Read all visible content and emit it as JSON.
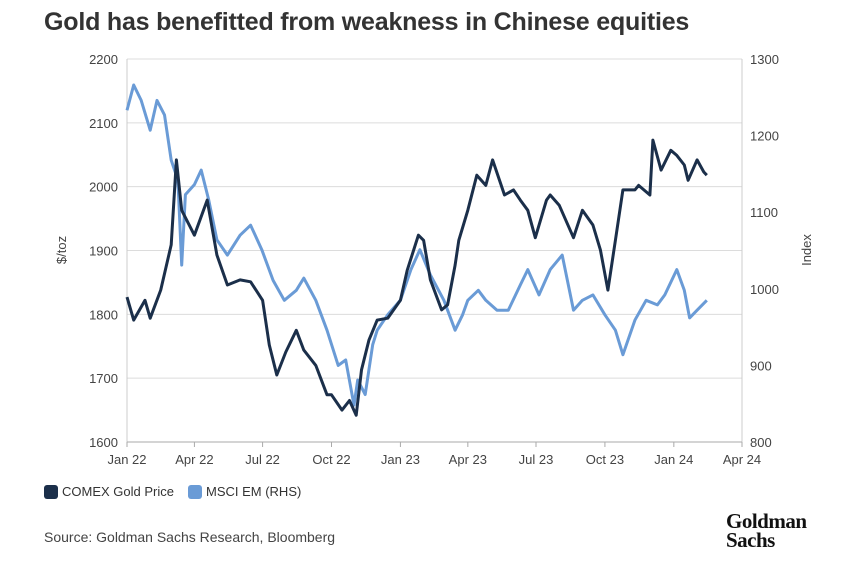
{
  "title": "Gold has benefitted from weakness in Chinese equities",
  "source": "Source: Goldman Sachs Research, Bloomberg",
  "logo": "Goldman Sachs",
  "chart_data": {
    "type": "line",
    "title": "Gold has benefitted from weakness in Chinese equities",
    "ylabel": "$/toz",
    "y2label": "Index",
    "ylim": [
      1600,
      2200
    ],
    "y2lim": [
      800,
      1300
    ],
    "yticks": [
      "1600",
      "1700",
      "1800",
      "1900",
      "2000",
      "2100",
      "2200"
    ],
    "y2ticks": [
      "800",
      "900",
      "1000",
      "1100",
      "1200",
      "1300"
    ],
    "xticks": [
      {
        "label": "Jan 22",
        "date": "2022-01-01"
      },
      {
        "label": "Apr 22",
        "date": "2022-04-01"
      },
      {
        "label": "Jul 22",
        "date": "2022-07-01"
      },
      {
        "label": "Oct 22",
        "date": "2022-10-01"
      },
      {
        "label": "Jan 23",
        "date": "2023-01-01"
      },
      {
        "label": "Apr 23",
        "date": "2023-04-01"
      },
      {
        "label": "Jul 23",
        "date": "2023-07-01"
      },
      {
        "label": "Oct 23",
        "date": "2023-10-01"
      },
      {
        "label": "Jan 24",
        "date": "2024-01-01"
      },
      {
        "label": "Apr 24",
        "date": "2024-04-01"
      }
    ],
    "grid": true,
    "legend": "bottom-left",
    "series": [
      {
        "name": "COMEX Gold Price",
        "axis": "left",
        "color": "#1b2f4a",
        "points": [
          [
            "2022-01-01",
            1827
          ],
          [
            "2022-01-10",
            1791
          ],
          [
            "2022-01-25",
            1822
          ],
          [
            "2022-02-01",
            1794
          ],
          [
            "2022-02-15",
            1838
          ],
          [
            "2022-03-01",
            1909
          ],
          [
            "2022-03-08",
            2042
          ],
          [
            "2022-03-15",
            1963
          ],
          [
            "2022-04-01",
            1924
          ],
          [
            "2022-04-18",
            1979
          ],
          [
            "2022-05-01",
            1893
          ],
          [
            "2022-05-15",
            1846
          ],
          [
            "2022-06-01",
            1854
          ],
          [
            "2022-06-15",
            1851
          ],
          [
            "2022-07-01",
            1822
          ],
          [
            "2022-07-10",
            1752
          ],
          [
            "2022-07-20",
            1705
          ],
          [
            "2022-08-01",
            1741
          ],
          [
            "2022-08-15",
            1775
          ],
          [
            "2022-08-25",
            1744
          ],
          [
            "2022-09-10",
            1720
          ],
          [
            "2022-09-25",
            1674
          ],
          [
            "2022-10-01",
            1674
          ],
          [
            "2022-10-15",
            1650
          ],
          [
            "2022-10-25",
            1665
          ],
          [
            "2022-11-03",
            1642
          ],
          [
            "2022-11-10",
            1713
          ],
          [
            "2022-11-20",
            1760
          ],
          [
            "2022-12-01",
            1791
          ],
          [
            "2022-12-15",
            1794
          ],
          [
            "2023-01-01",
            1822
          ],
          [
            "2023-01-10",
            1869
          ],
          [
            "2023-01-25",
            1924
          ],
          [
            "2023-02-01",
            1916
          ],
          [
            "2023-02-10",
            1854
          ],
          [
            "2023-02-25",
            1807
          ],
          [
            "2023-03-05",
            1815
          ],
          [
            "2023-03-15",
            1877
          ],
          [
            "2023-03-20",
            1916
          ],
          [
            "2023-04-01",
            1963
          ],
          [
            "2023-04-13",
            2018
          ],
          [
            "2023-04-25",
            2002
          ],
          [
            "2023-05-04",
            2042
          ],
          [
            "2023-05-20",
            1987
          ],
          [
            "2023-06-01",
            1995
          ],
          [
            "2023-06-10",
            1979
          ],
          [
            "2023-06-20",
            1963
          ],
          [
            "2023-06-30",
            1920
          ],
          [
            "2023-07-15",
            1979
          ],
          [
            "2023-07-20",
            1987
          ],
          [
            "2023-08-01",
            1971
          ],
          [
            "2023-08-20",
            1920
          ],
          [
            "2023-09-01",
            1963
          ],
          [
            "2023-09-15",
            1940
          ],
          [
            "2023-09-25",
            1901
          ],
          [
            "2023-10-05",
            1838
          ],
          [
            "2023-10-15",
            1916
          ],
          [
            "2023-10-25",
            1995
          ],
          [
            "2023-11-10",
            1995
          ],
          [
            "2023-11-15",
            2002
          ],
          [
            "2023-11-30",
            1987
          ],
          [
            "2023-12-04",
            2073
          ],
          [
            "2023-12-15",
            2026
          ],
          [
            "2023-12-28",
            2057
          ],
          [
            "2024-01-05",
            2049
          ],
          [
            "2024-01-15",
            2034
          ],
          [
            "2024-01-20",
            2010
          ],
          [
            "2024-02-01",
            2042
          ],
          [
            "2024-02-10",
            2023
          ],
          [
            "2024-02-14",
            2018
          ]
        ]
      },
      {
        "name": "MSCI EM (RHS)",
        "axis": "right",
        "color": "#6a9bd6",
        "points": [
          [
            "2022-01-01",
            1233
          ],
          [
            "2022-01-10",
            1266
          ],
          [
            "2022-01-20",
            1246
          ],
          [
            "2022-02-01",
            1207
          ],
          [
            "2022-02-10",
            1246
          ],
          [
            "2022-02-20",
            1227
          ],
          [
            "2022-03-01",
            1168
          ],
          [
            "2022-03-10",
            1142
          ],
          [
            "2022-03-15",
            1031
          ],
          [
            "2022-03-20",
            1123
          ],
          [
            "2022-04-01",
            1136
          ],
          [
            "2022-04-10",
            1155
          ],
          [
            "2022-04-20",
            1116
          ],
          [
            "2022-05-01",
            1064
          ],
          [
            "2022-05-15",
            1044
          ],
          [
            "2022-06-01",
            1070
          ],
          [
            "2022-06-15",
            1083
          ],
          [
            "2022-06-30",
            1051
          ],
          [
            "2022-07-15",
            1011
          ],
          [
            "2022-07-30",
            985
          ],
          [
            "2022-08-15",
            998
          ],
          [
            "2022-08-25",
            1014
          ],
          [
            "2022-09-10",
            985
          ],
          [
            "2022-09-25",
            946
          ],
          [
            "2022-10-10",
            900
          ],
          [
            "2022-10-20",
            907
          ],
          [
            "2022-10-31",
            848
          ],
          [
            "2022-11-05",
            881
          ],
          [
            "2022-11-15",
            862
          ],
          [
            "2022-11-25",
            927
          ],
          [
            "2022-12-01",
            946
          ],
          [
            "2022-12-15",
            966
          ],
          [
            "2023-01-01",
            985
          ],
          [
            "2023-01-15",
            1025
          ],
          [
            "2023-01-27",
            1051
          ],
          [
            "2023-02-10",
            1018
          ],
          [
            "2023-02-28",
            985
          ],
          [
            "2023-03-15",
            946
          ],
          [
            "2023-03-25",
            966
          ],
          [
            "2023-04-01",
            985
          ],
          [
            "2023-04-15",
            998
          ],
          [
            "2023-04-25",
            985
          ],
          [
            "2023-05-10",
            972
          ],
          [
            "2023-05-25",
            972
          ],
          [
            "2023-06-10",
            1005
          ],
          [
            "2023-06-20",
            1025
          ],
          [
            "2023-07-05",
            992
          ],
          [
            "2023-07-20",
            1025
          ],
          [
            "2023-08-05",
            1044
          ],
          [
            "2023-08-20",
            972
          ],
          [
            "2023-09-01",
            985
          ],
          [
            "2023-09-15",
            992
          ],
          [
            "2023-10-01",
            966
          ],
          [
            "2023-10-15",
            946
          ],
          [
            "2023-10-25",
            914
          ],
          [
            "2023-11-10",
            959
          ],
          [
            "2023-11-25",
            985
          ],
          [
            "2023-12-10",
            979
          ],
          [
            "2023-12-20",
            992
          ],
          [
            "2024-01-05",
            1025
          ],
          [
            "2024-01-15",
            998
          ],
          [
            "2024-01-22",
            962
          ],
          [
            "2024-02-01",
            972
          ],
          [
            "2024-02-14",
            985
          ]
        ]
      }
    ]
  }
}
